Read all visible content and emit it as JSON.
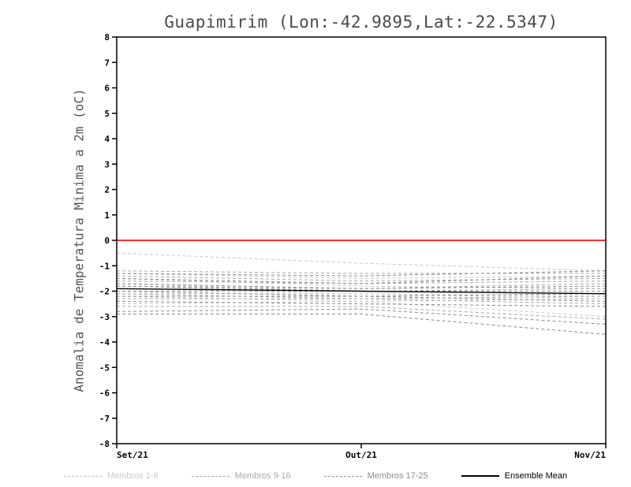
{
  "title": "Guapimirim (Lon:-42.9895,Lat:-22.5347)",
  "chart_data": {
    "type": "line",
    "title": "Guapimirim (Lon:-42.9895,Lat:-22.5347)",
    "xlabel": "",
    "ylabel": "Anomalia de Temperatura Minima a 2m (oC)",
    "ylim": [
      -8,
      8
    ],
    "y_tick_step": 1,
    "x_categories": [
      "Set/21",
      "Out/21",
      "Nov/21"
    ],
    "grid": false,
    "legend_position": "bottom",
    "zero_line": {
      "y": 0,
      "color": "#ff2f2f"
    },
    "groups": [
      {
        "name": "Membros 1-8",
        "color": "#c8c8c8",
        "series": [
          [
            -0.5,
            -0.9,
            -1.2
          ],
          [
            -1.3,
            -1.5,
            -1.4
          ],
          [
            -1.5,
            -1.8,
            -1.9
          ],
          [
            -1.7,
            -2.0,
            -2.1
          ],
          [
            -1.9,
            -2.1,
            -2.2
          ],
          [
            -2.1,
            -2.1,
            -2.3
          ],
          [
            -2.2,
            -2.4,
            -2.3
          ],
          [
            -2.5,
            -2.4,
            -3.0
          ]
        ]
      },
      {
        "name": "Membros 9-16",
        "color": "#aaaaaa",
        "series": [
          [
            -1.2,
            -1.3,
            -1.3
          ],
          [
            -1.4,
            -1.6,
            -1.5
          ],
          [
            -1.6,
            -1.7,
            -1.6
          ],
          [
            -1.8,
            -1.9,
            -1.7
          ],
          [
            -2.0,
            -2.0,
            -1.9
          ],
          [
            -2.1,
            -2.3,
            -2.2
          ],
          [
            -2.3,
            -2.3,
            -2.5
          ],
          [
            -2.6,
            -2.6,
            -3.1
          ]
        ]
      },
      {
        "name": "Membros 17-25",
        "color": "#8c8c8c",
        "series": [
          [
            -1.3,
            -1.4,
            -1.2
          ],
          [
            -1.5,
            -1.7,
            -1.4
          ],
          [
            -1.7,
            -1.9,
            -1.8
          ],
          [
            -1.8,
            -2.0,
            -2.0
          ],
          [
            -2.0,
            -2.2,
            -2.1
          ],
          [
            -2.2,
            -2.2,
            -2.4
          ],
          [
            -2.4,
            -2.5,
            -2.6
          ],
          [
            -2.8,
            -2.7,
            -3.3
          ],
          [
            -2.9,
            -2.9,
            -3.7
          ]
        ]
      }
    ],
    "mean": {
      "name": "Ensemble Mean",
      "color": "#000000",
      "values": [
        -1.9,
        -2.0,
        -2.1
      ]
    }
  },
  "legend": {
    "items": [
      {
        "label": "Membros 1-8",
        "color": "#c8c8c8",
        "dashed": true
      },
      {
        "label": "Membros 9-16",
        "color": "#aaaaaa",
        "dashed": true
      },
      {
        "label": "Membros 17-25",
        "color": "#8c8c8c",
        "dashed": true
      },
      {
        "label": "Ensemble Mean",
        "color": "#000000",
        "dashed": false
      }
    ]
  }
}
